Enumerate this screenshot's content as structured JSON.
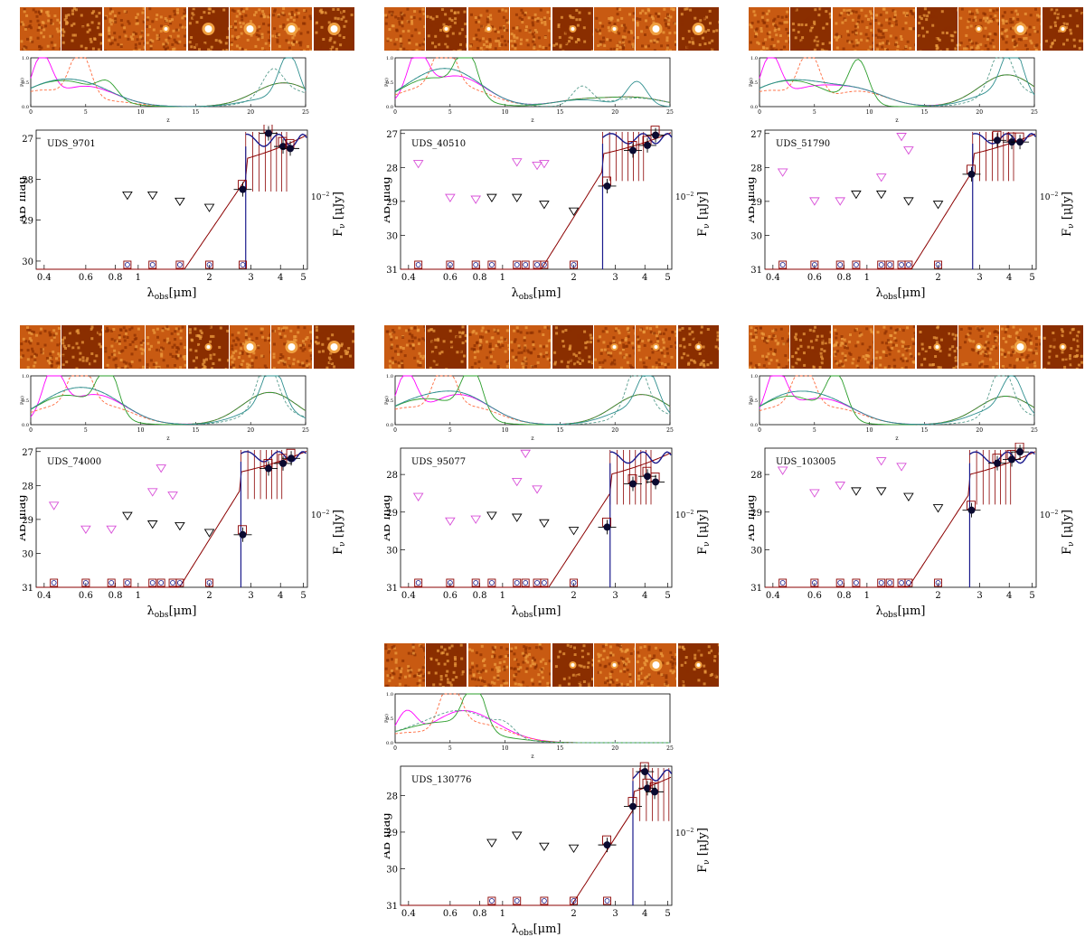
{
  "colors": {
    "stamp_dark": "#8a2e00",
    "stamp_mid": "#c85a12",
    "stamp_light": "#f0a040",
    "stamp_bright": "#ffffff",
    "pz_series": [
      "#ff00ff",
      "#ff6a3d",
      "#2a9d2a",
      "#5a9e8f",
      "#2f8f8f"
    ],
    "sed_model": "#8b0000",
    "sed_best": "#1a1a8c",
    "uplim_black": "#000000",
    "uplim_magenta": "#d84fd8"
  },
  "pz_axis": {
    "ylabel": "P(z)",
    "xlabel": "z",
    "xticks": [
      0,
      5,
      10,
      15,
      20,
      25
    ],
    "yticks": [
      "0.0",
      "0.5",
      "1.0"
    ]
  },
  "sed_axis": {
    "ylabel": "AB mag",
    "xlabel_main": "λ",
    "xlabel_sub": "obs",
    "xlabel_unit": "[μm]",
    "right_label": "F",
    "right_sub": "ν",
    "right_unit": "[μJy]",
    "right_tick": "10",
    "right_tick_exp": "−2",
    "xticks": [
      "0.4",
      "0.6",
      "0.8",
      "1",
      "2",
      "3",
      "4",
      "5"
    ]
  },
  "chart_data": [
    {
      "type": "scatter",
      "title": "UDS_9701",
      "ylim": [
        30.2,
        26.8
      ],
      "yticks": [
        27,
        28,
        29,
        30
      ],
      "stamps_bright": [
        0,
        0,
        0,
        1,
        2,
        2,
        2,
        2
      ],
      "pz_peaks": [
        [
          1,
          0.95
        ],
        [
          4.5,
          1.0
        ],
        [
          7,
          0.3
        ],
        [
          22,
          0.5
        ],
        [
          23.5,
          0.95
        ]
      ],
      "detections": [
        [
          2.77,
          28.25
        ],
        [
          3.56,
          26.88
        ],
        [
          4.1,
          27.2
        ],
        [
          4.4,
          27.25
        ]
      ],
      "black_ul": [
        [
          0.9,
          28.4
        ],
        [
          1.15,
          28.4
        ],
        [
          1.5,
          28.55
        ],
        [
          2.0,
          28.7
        ]
      ],
      "magenta_ul": [],
      "bottom_boxes": [
        0.9,
        1.15,
        1.5,
        2.0,
        2.77
      ],
      "break": 2.85
    },
    {
      "type": "scatter",
      "title": "UDS_40510",
      "ylim": [
        31,
        26.9
      ],
      "yticks": [
        27,
        28,
        29,
        30,
        31
      ],
      "stamps_bright": [
        0,
        1,
        1,
        0,
        1,
        1,
        2,
        2
      ],
      "pz_peaks": [
        [
          2,
          0.9
        ],
        [
          4.5,
          1.0
        ],
        [
          6.5,
          0.95
        ],
        [
          17,
          0.4
        ],
        [
          22,
          0.5
        ]
      ],
      "detections": [
        [
          2.77,
          28.55
        ],
        [
          3.56,
          27.5
        ],
        [
          4.1,
          27.35
        ],
        [
          4.44,
          27.05
        ]
      ],
      "black_ul": [
        [
          0.9,
          28.9
        ],
        [
          1.15,
          28.9
        ],
        [
          1.5,
          29.1
        ],
        [
          2.0,
          29.3
        ]
      ],
      "magenta_ul": [
        [
          0.44,
          27.9
        ],
        [
          0.6,
          28.9
        ],
        [
          0.77,
          28.95
        ],
        [
          1.15,
          27.85
        ],
        [
          1.4,
          27.95
        ],
        [
          1.5,
          27.9
        ]
      ],
      "bottom_boxes": [
        0.44,
        0.6,
        0.77,
        0.9,
        1.15,
        1.25,
        1.4,
        1.5,
        2.0
      ],
      "break": 2.65
    },
    {
      "type": "scatter",
      "title": "UDS_51790",
      "ylim": [
        31,
        26.9
      ],
      "yticks": [
        27,
        28,
        29,
        30,
        31
      ],
      "stamps_bright": [
        0,
        0,
        0,
        0,
        0,
        1,
        2,
        1
      ],
      "pz_peaks": [
        [
          1,
          0.95
        ],
        [
          4.5,
          1.0
        ],
        [
          9,
          0.9
        ],
        [
          22,
          0.9
        ],
        [
          23,
          1.0
        ]
      ],
      "detections": [
        [
          2.77,
          28.2
        ],
        [
          3.56,
          27.2
        ],
        [
          4.1,
          27.25
        ],
        [
          4.44,
          27.25
        ]
      ],
      "black_ul": [
        [
          0.9,
          28.8
        ],
        [
          1.15,
          28.8
        ],
        [
          1.5,
          29.0
        ],
        [
          2.0,
          29.1
        ]
      ],
      "magenta_ul": [
        [
          0.44,
          28.15
        ],
        [
          0.6,
          29.0
        ],
        [
          0.77,
          29.0
        ],
        [
          1.15,
          28.3
        ],
        [
          1.4,
          27.1
        ],
        [
          1.5,
          27.5
        ]
      ],
      "bottom_boxes": [
        0.44,
        0.6,
        0.77,
        0.9,
        1.15,
        1.25,
        1.4,
        1.5,
        2.0
      ],
      "break": 2.8
    },
    {
      "type": "scatter",
      "title": "UDS_74000",
      "ylim": [
        31,
        26.9
      ],
      "yticks": [
        27,
        28,
        29,
        30,
        31
      ],
      "stamps_bright": [
        0,
        0,
        0,
        0,
        1,
        2,
        2,
        2
      ],
      "pz_peaks": [
        [
          2,
          0.95
        ],
        [
          4.5,
          1.0
        ],
        [
          7,
          1.0
        ],
        [
          21.5,
          1.0
        ],
        [
          22,
          0.9
        ]
      ],
      "detections": [
        [
          2.77,
          29.45
        ],
        [
          3.56,
          27.5
        ],
        [
          4.1,
          27.35
        ],
        [
          4.44,
          27.2
        ]
      ],
      "black_ul": [
        [
          0.9,
          28.9
        ],
        [
          1.15,
          29.15
        ],
        [
          1.5,
          29.2
        ],
        [
          2.0,
          29.4
        ]
      ],
      "magenta_ul": [
        [
          0.44,
          28.6
        ],
        [
          0.6,
          29.3
        ],
        [
          0.77,
          29.3
        ],
        [
          1.15,
          28.2
        ],
        [
          1.25,
          27.5
        ],
        [
          1.4,
          28.3
        ]
      ],
      "bottom_boxes": [
        0.44,
        0.6,
        0.77,
        0.9,
        1.15,
        1.25,
        1.4,
        1.5,
        2.0
      ],
      "break": 2.72
    },
    {
      "type": "scatter",
      "title": "UDS_95077",
      "ylim": [
        31,
        27.3
      ],
      "yticks": [
        28,
        29,
        30,
        31
      ],
      "stamps_bright": [
        0,
        0,
        0,
        0,
        0,
        1,
        1,
        1
      ],
      "pz_peaks": [
        [
          1,
          0.95
        ],
        [
          4.5,
          1.0
        ],
        [
          7,
          1.0
        ],
        [
          22,
          1.0
        ],
        [
          23,
          0.8
        ]
      ],
      "detections": [
        [
          2.77,
          29.4
        ],
        [
          3.56,
          28.25
        ],
        [
          4.1,
          28.05
        ],
        [
          4.44,
          28.2
        ]
      ],
      "black_ul": [
        [
          0.9,
          29.1
        ],
        [
          1.15,
          29.15
        ],
        [
          1.5,
          29.3
        ],
        [
          2.0,
          29.5
        ]
      ],
      "magenta_ul": [
        [
          0.44,
          28.6
        ],
        [
          0.6,
          29.25
        ],
        [
          0.77,
          29.2
        ],
        [
          1.15,
          28.2
        ],
        [
          1.25,
          27.45
        ],
        [
          1.4,
          28.4
        ]
      ],
      "bottom_boxes": [
        0.44,
        0.6,
        0.77,
        0.9,
        1.15,
        1.25,
        1.4,
        1.5,
        2.0
      ],
      "break": 2.85
    },
    {
      "type": "scatter",
      "title": "UDS_103005",
      "ylim": [
        31,
        27.3
      ],
      "yticks": [
        28,
        29,
        30,
        31
      ],
      "stamps_bright": [
        0,
        0,
        0,
        0,
        1,
        1,
        2,
        1
      ],
      "pz_peaks": [
        [
          1.5,
          0.95
        ],
        [
          4,
          0.95
        ],
        [
          7,
          0.9
        ],
        [
          22,
          1.0
        ],
        [
          23,
          0.7
        ]
      ],
      "detections": [
        [
          2.77,
          28.95
        ],
        [
          3.56,
          27.7
        ],
        [
          4.1,
          27.6
        ],
        [
          4.44,
          27.4
        ]
      ],
      "black_ul": [
        [
          0.9,
          28.45
        ],
        [
          1.15,
          28.45
        ],
        [
          1.5,
          28.6
        ],
        [
          2.0,
          28.9
        ]
      ],
      "magenta_ul": [
        [
          0.44,
          27.9
        ],
        [
          0.6,
          28.5
        ],
        [
          0.77,
          28.3
        ],
        [
          1.15,
          27.65
        ],
        [
          1.4,
          27.8
        ]
      ],
      "bottom_boxes": [
        0.44,
        0.6,
        0.77,
        0.9,
        1.15,
        1.25,
        1.4,
        1.5,
        2.0
      ],
      "break": 2.72
    },
    {
      "type": "scatter",
      "title": "UDS_130776",
      "ylim": [
        31,
        27.2
      ],
      "yticks": [
        28,
        29,
        30,
        31
      ],
      "stamps_bright": [
        0,
        0,
        0,
        0,
        1,
        1,
        2,
        1
      ],
      "pz_peaks": [
        [
          1,
          0.55
        ],
        [
          5,
          1.0
        ],
        [
          7.2,
          1.0
        ],
        [
          10,
          0.2
        ]
      ],
      "detections": [
        [
          2.77,
          29.35
        ],
        [
          3.56,
          28.3
        ],
        [
          4.0,
          27.35
        ],
        [
          4.1,
          27.8
        ],
        [
          4.4,
          27.9
        ]
      ],
      "black_ul": [
        [
          0.9,
          29.3
        ],
        [
          1.15,
          29.1
        ],
        [
          1.5,
          29.4
        ],
        [
          2.0,
          29.45
        ]
      ],
      "magenta_ul": [],
      "bottom_boxes": [
        0.9,
        1.15,
        1.5,
        2.0,
        2.77
      ],
      "break": 3.56
    }
  ]
}
